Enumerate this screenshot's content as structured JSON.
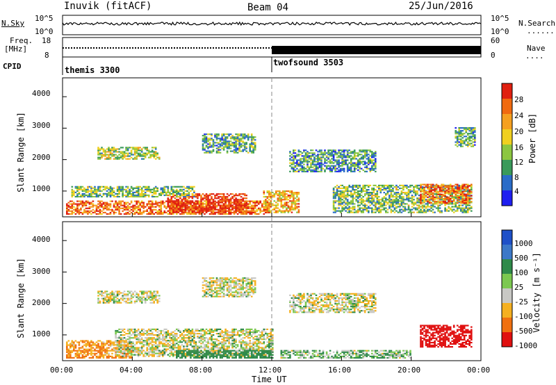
{
  "header": {
    "station": "Inuvik (fitACF)",
    "beam": "Beam 04",
    "date": "25/Jun/2016"
  },
  "nsky_panel": {
    "left_label": "N.Sky",
    "left_ticks": [
      "10^5",
      "10^0"
    ],
    "right_ticks": [
      "10^5",
      "10^0"
    ],
    "right_label": "N.Search",
    "right_legend_dots": "......."
  },
  "freq_panel": {
    "left_label_1": "Freq.",
    "left_label_2": "[MHz]",
    "left_ticks": [
      "18",
      "8"
    ],
    "right_ticks": [
      "60",
      "0"
    ],
    "right_label": "Nave",
    "right_legend_dots": "...."
  },
  "cpid_panel": {
    "label": "CPID",
    "programs": [
      {
        "name": "themis 3300",
        "start_hour": 0
      },
      {
        "name": "twofsound 3503",
        "start_hour": 12
      }
    ]
  },
  "time_axis": {
    "label": "Time UT",
    "ticks": [
      "00:00",
      "04:00",
      "08:00",
      "12:00",
      "16:00",
      "20:00",
      "00:00"
    ],
    "tick_hours": [
      0,
      4,
      8,
      12,
      16,
      20,
      24
    ]
  },
  "chart_data": [
    {
      "type": "heatmap",
      "title": "",
      "ylabel": "Slant Range [km]",
      "yticks": [
        "1000",
        "2000",
        "3000",
        "4000"
      ],
      "ylim": [
        180,
        4600
      ],
      "xlim_hours": [
        0,
        24
      ],
      "colorbar_label": "Power [dB]",
      "colorbar_ticks": [
        "4",
        "8",
        "12",
        "16",
        "20",
        "24",
        "28"
      ],
      "colorbar_range": [
        0,
        30
      ],
      "colorbar_colors": [
        "#1e1ef0",
        "#2a6cc8",
        "#3a9a5a",
        "#8cc640",
        "#f0d020",
        "#f5a020",
        "#f06a10",
        "#e02010"
      ],
      "regions": [
        {
          "t0": 0.2,
          "t1": 11.8,
          "r0": 250,
          "r1": 700,
          "level": 24
        },
        {
          "t0": 6.0,
          "t1": 10.5,
          "r0": 300,
          "r1": 900,
          "level": 28
        },
        {
          "t0": 0.5,
          "t1": 7.5,
          "r0": 800,
          "r1": 1150,
          "level": 12
        },
        {
          "t0": 2.0,
          "t1": 5.5,
          "r0": 2000,
          "r1": 2400,
          "level": 14
        },
        {
          "t0": 8.0,
          "t1": 11.0,
          "r0": 2200,
          "r1": 2800,
          "level": 10
        },
        {
          "t0": 11.5,
          "t1": 13.5,
          "r0": 300,
          "r1": 1000,
          "level": 20
        },
        {
          "t0": 13.0,
          "t1": 18.0,
          "r0": 1600,
          "r1": 2300,
          "level": 9
        },
        {
          "t0": 15.5,
          "t1": 23.5,
          "r0": 300,
          "r1": 1200,
          "level": 12
        },
        {
          "t0": 20.5,
          "t1": 23.5,
          "r0": 600,
          "r1": 1200,
          "level": 24
        },
        {
          "t0": 22.5,
          "t1": 23.7,
          "r0": 2400,
          "r1": 3000,
          "level": 10
        }
      ]
    },
    {
      "type": "heatmap",
      "title": "",
      "ylabel": "Slant Range [km]",
      "yticks": [
        "1000",
        "2000",
        "3000",
        "4000"
      ],
      "ylim": [
        180,
        4600
      ],
      "xlim_hours": [
        0,
        24
      ],
      "colorbar_label": "Velocity [m s⁻¹]",
      "colorbar_ticks": [
        "1000",
        "500",
        "100",
        "25",
        "-25",
        "-100",
        "-500",
        "-1000"
      ],
      "colorbar_colors": [
        "#1e50c8",
        "#3c78c8",
        "#2f8a4a",
        "#7cc850",
        "#c8c8c4",
        "#f5b020",
        "#f07010",
        "#e01010"
      ],
      "regions": [
        {
          "t0": 0.2,
          "t1": 4.0,
          "r0": 250,
          "r1": 800,
          "vel": -100
        },
        {
          "t0": 3.0,
          "t1": 12.0,
          "r0": 300,
          "r1": 1200,
          "vel": 0
        },
        {
          "t0": 6.5,
          "t1": 12.0,
          "r0": 250,
          "r1": 500,
          "vel": 200
        },
        {
          "t0": 2.0,
          "t1": 5.5,
          "r0": 2000,
          "r1": 2400,
          "vel": 0
        },
        {
          "t0": 8.0,
          "t1": 11.0,
          "r0": 2200,
          "r1": 2800,
          "vel": 0
        },
        {
          "t0": 13.0,
          "t1": 18.0,
          "r0": 1700,
          "r1": 2300,
          "vel": 0
        },
        {
          "t0": 12.5,
          "t1": 20.0,
          "r0": 250,
          "r1": 500,
          "vel": 50
        },
        {
          "t0": 20.5,
          "t1": 23.5,
          "r0": 600,
          "r1": 1300,
          "vel": -600
        }
      ]
    }
  ]
}
